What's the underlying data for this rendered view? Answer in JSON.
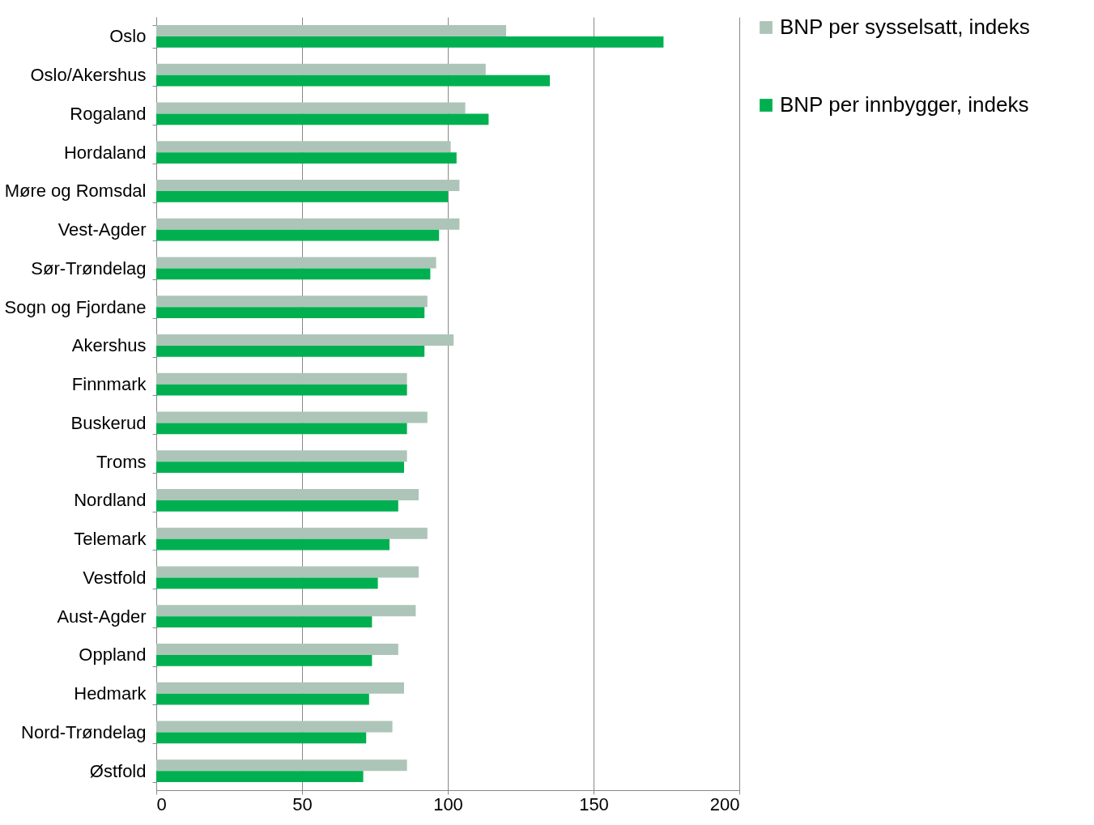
{
  "chart_data": {
    "type": "bar",
    "orientation": "horizontal",
    "categories": [
      "Oslo",
      "Oslo/Akershus",
      "Rogaland",
      "Hordaland",
      "Møre og Romsdal",
      "Vest-Agder",
      "Sør-Trøndelag",
      "Sogn og Fjordane",
      "Akershus",
      "Finnmark",
      "Buskerud",
      "Troms",
      "Nordland",
      "Telemark",
      "Vestfold",
      "Aust-Agder",
      "Oppland",
      "Hedmark",
      "Nord-Trøndelag",
      "Østfold"
    ],
    "series": [
      {
        "name": "BNP per sysselsatt, indeks",
        "color": "#adc5b8",
        "values": [
          120,
          113,
          106,
          101,
          104,
          104,
          96,
          93,
          102,
          86,
          93,
          86,
          90,
          93,
          90,
          89,
          83,
          85,
          81,
          86
        ]
      },
      {
        "name": "BNP per innbygger, indeks",
        "color": "#00b050",
        "values": [
          174,
          135,
          114,
          103,
          100,
          97,
          94,
          92,
          92,
          86,
          86,
          85,
          83,
          80,
          76,
          74,
          74,
          73,
          72,
          71
        ]
      }
    ],
    "xlim": [
      0,
      200
    ],
    "xticks": [
      0,
      50,
      100,
      150,
      200
    ],
    "grid": "x",
    "legend": "right"
  }
}
